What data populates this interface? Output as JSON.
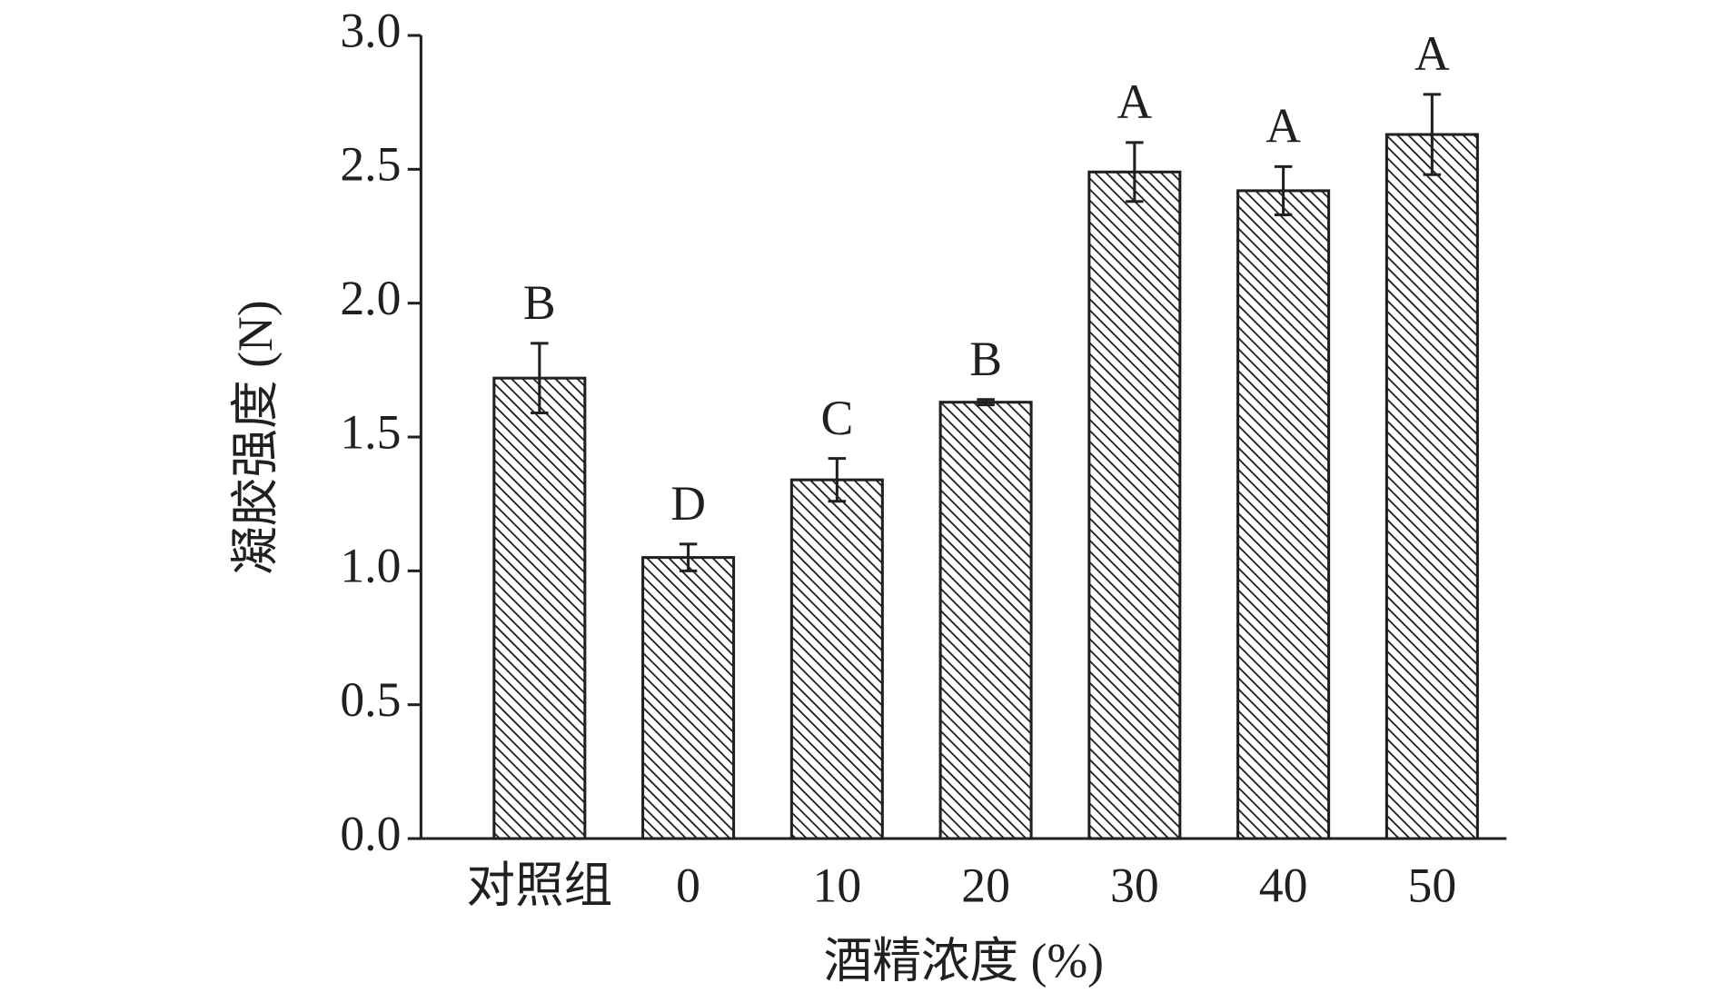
{
  "chart_data": {
    "type": "bar",
    "y_label": "凝胶强度 (N)",
    "x_label": "酒精浓度 (%)",
    "categories": [
      "对照组",
      "0",
      "10",
      "20",
      "30",
      "40",
      "50"
    ],
    "values": [
      1.72,
      1.05,
      1.34,
      1.63,
      2.49,
      2.42,
      2.63
    ],
    "errors": [
      0.13,
      0.05,
      0.08,
      0.01,
      0.11,
      0.09,
      0.15
    ],
    "significance_labels": [
      "B",
      "D",
      "C",
      "B",
      "A",
      "A",
      "A"
    ],
    "color": "#231f20",
    "ylim": [
      0,
      3.0
    ],
    "yticks": [
      {
        "value": 0,
        "label": "0.0"
      },
      0.5,
      {
        "value": 1.0,
        "label": "1.0"
      },
      1.5,
      {
        "value": 2.0,
        "label": "2.0"
      },
      2.5,
      {
        "value": 3.0,
        "label": "3.0"
      }
    ],
    "grid": false
  }
}
